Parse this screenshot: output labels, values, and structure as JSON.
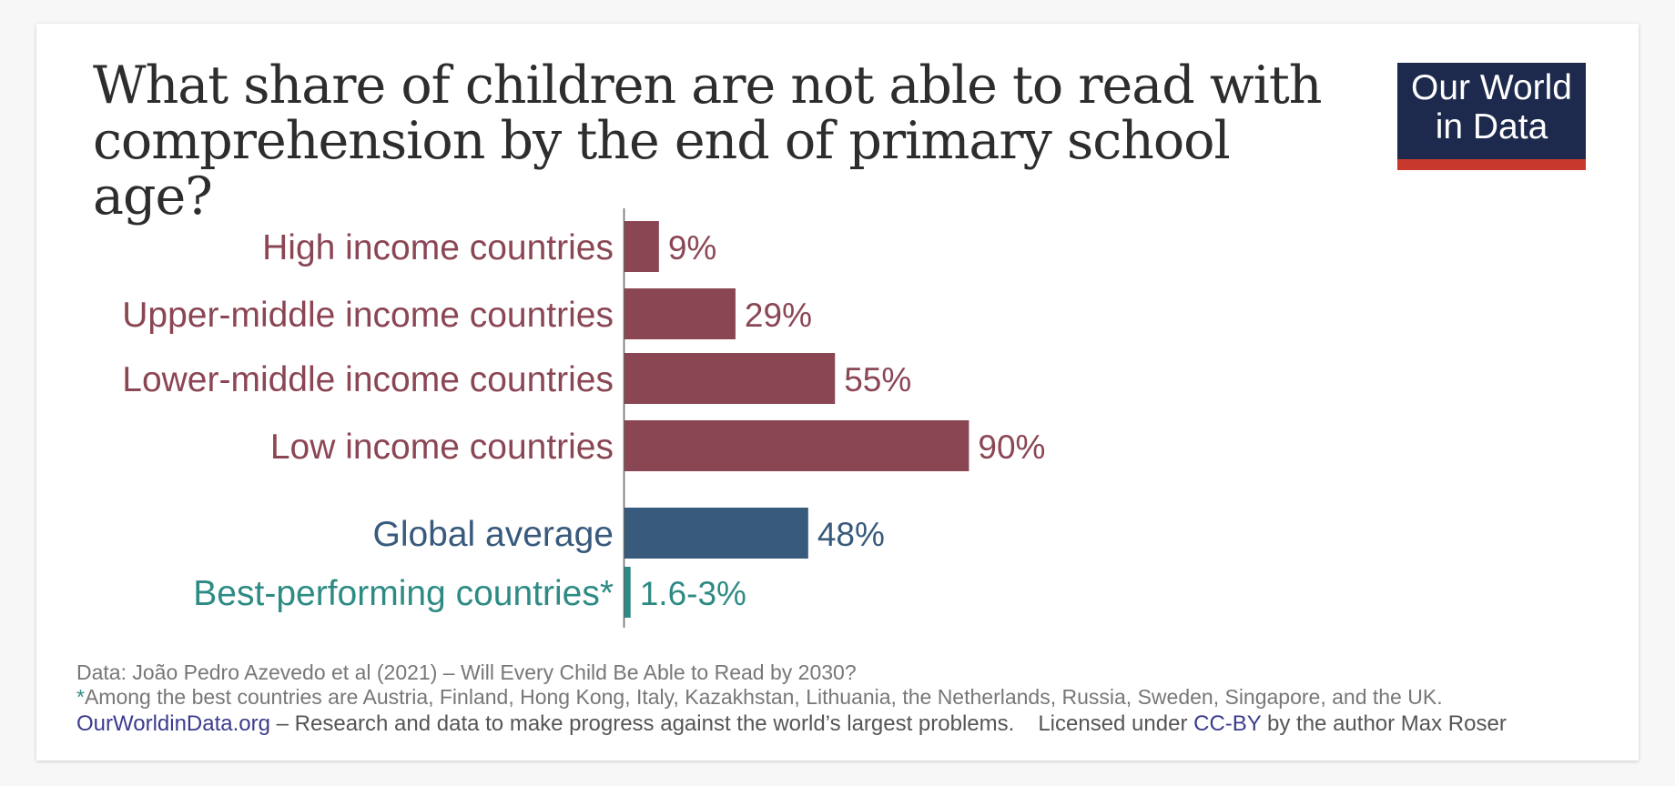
{
  "title": "What share of children are not able to read with comprehension by the end of primary school age?",
  "logo": {
    "line1": "Our World",
    "line2": "in Data",
    "background": "#1d2a4d",
    "stripe": "#c8382c"
  },
  "chart_data": {
    "type": "bar",
    "orientation": "horizontal",
    "categories": [
      "High income countries",
      "Upper-middle income countries",
      "Lower-middle income countries",
      "Low income countries",
      "Global average",
      "Best-performing countries*"
    ],
    "values": [
      9,
      29,
      55,
      90,
      48,
      1.6
    ],
    "value_labels": [
      "9%",
      "29%",
      "55%",
      "90%",
      "48%",
      "1.6-3%"
    ],
    "colors": [
      "#8b4654",
      "#8b4654",
      "#8b4654",
      "#8b4654",
      "#385a7d",
      "#2e8b84"
    ],
    "xlim": [
      0,
      90
    ],
    "grid": false,
    "legend": "none"
  },
  "footer": {
    "source": "Data: João Pedro Azevedo et al (2021) – Will Every Child Be Able to Read by 2030?",
    "note_asterisk": "*",
    "note": "Among the best countries are Austria, Finland, Hong Kong, Italy, Kazakhstan, Lithuania, the Netherlands, Russia, Sweden, Singapore, and the UK.",
    "site": "OurWorldinData.org",
    "tagline": " – Research and data to make progress against the world’s largest problems.",
    "license_prefix": "Licensed under ",
    "license_link": "CC-BY",
    "license_suffix": " by the author Max Roser"
  }
}
